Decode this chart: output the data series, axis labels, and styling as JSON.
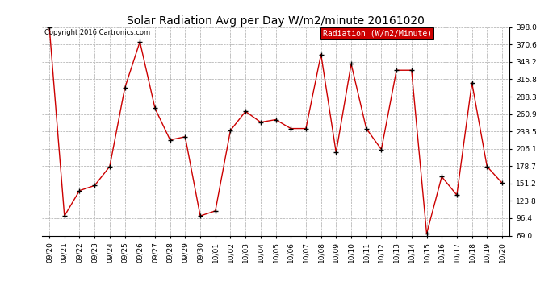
{
  "title": "Solar Radiation Avg per Day W/m2/minute 20161020",
  "copyright_text": "Copyright 2016 Cartronics.com",
  "legend_label": "Radiation (W/m2/Minute)",
  "dates": [
    "09/20",
    "09/21",
    "09/22",
    "09/23",
    "09/24",
    "09/25",
    "09/26",
    "09/27",
    "09/28",
    "09/29",
    "09/30",
    "10/01",
    "10/02",
    "10/03",
    "10/04",
    "10/05",
    "10/06",
    "10/07",
    "10/08",
    "10/09",
    "10/10",
    "10/11",
    "10/12",
    "10/13",
    "10/14",
    "10/15",
    "10/16",
    "10/17",
    "10/18",
    "10/19",
    "10/20"
  ],
  "values": [
    398.0,
    100.0,
    140.0,
    148.0,
    178.0,
    302.0,
    375.0,
    270.0,
    220.0,
    225.0,
    100.0,
    108.0,
    235.0,
    265.0,
    248.0,
    252.0,
    238.0,
    238.0,
    355.0,
    200.0,
    340.0,
    238.0,
    205.0,
    330.0,
    330.0,
    72.0,
    162.0,
    133.0,
    310.0,
    178.0,
    152.0
  ],
  "ylim": [
    69.0,
    398.0
  ],
  "yticks": [
    69.0,
    96.4,
    123.8,
    151.2,
    178.7,
    206.1,
    233.5,
    260.9,
    288.3,
    315.8,
    343.2,
    370.6,
    398.0
  ],
  "line_color": "#cc0000",
  "marker_color": "#000000",
  "bg_color": "#ffffff",
  "grid_color": "#aaaaaa",
  "legend_bg": "#cc0000",
  "legend_text_color": "#ffffff",
  "title_fontsize": 10,
  "tick_fontsize": 6.5,
  "copyright_fontsize": 6,
  "legend_fontsize": 7
}
